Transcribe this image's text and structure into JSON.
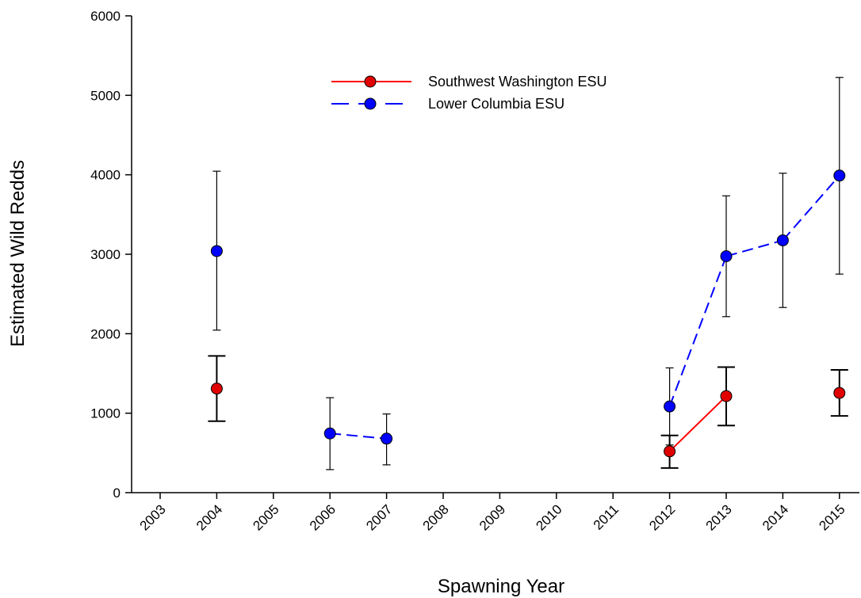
{
  "chart_data": {
    "type": "line",
    "xlabel": "Spawning Year",
    "ylabel": "Estimated Wild Redds",
    "x_categories": [
      "2003",
      "2004",
      "2005",
      "2006",
      "2007",
      "2008",
      "2009",
      "2010",
      "2011",
      "2012",
      "2013",
      "2014",
      "2015"
    ],
    "ylim": [
      0,
      6000
    ],
    "yticks": [
      "0",
      "1000",
      "2000",
      "3000",
      "4000",
      "5000",
      "6000"
    ],
    "grid": false,
    "legend_position": "top-center",
    "series": [
      {
        "name": "Southwest Washington ESU",
        "color": "#ff0000",
        "marker_color": "#e00000",
        "line_style": "solid",
        "points": [
          {
            "x": "2004",
            "y": 1310,
            "lower": 900,
            "upper": 1720,
            "connected_to_prev": false
          },
          {
            "x": "2012",
            "y": 520,
            "lower": 310,
            "upper": 720,
            "connected_to_prev": false
          },
          {
            "x": "2013",
            "y": 1215,
            "lower": 845,
            "upper": 1580,
            "connected_to_prev": true
          },
          {
            "x": "2015",
            "y": 1255,
            "lower": 965,
            "upper": 1545,
            "connected_to_prev": false
          }
        ]
      },
      {
        "name": "Lower Columbia ESU",
        "color": "#0000ff",
        "marker_color": "#0000ff",
        "line_style": "dashed",
        "points": [
          {
            "x": "2004",
            "y": 3040,
            "lower": 2045,
            "upper": 4045,
            "connected_to_prev": false
          },
          {
            "x": "2006",
            "y": 745,
            "lower": 290,
            "upper": 1195,
            "connected_to_prev": false
          },
          {
            "x": "2007",
            "y": 680,
            "lower": 350,
            "upper": 990,
            "connected_to_prev": true
          },
          {
            "x": "2012",
            "y": 1085,
            "lower": 600,
            "upper": 1570,
            "connected_to_prev": false
          },
          {
            "x": "2013",
            "y": 2975,
            "lower": 2215,
            "upper": 3735,
            "connected_to_prev": true
          },
          {
            "x": "2014",
            "y": 3175,
            "lower": 2330,
            "upper": 4020,
            "connected_to_prev": true
          },
          {
            "x": "2015",
            "y": 3990,
            "lower": 2750,
            "upper": 5225,
            "connected_to_prev": true
          }
        ]
      }
    ]
  }
}
